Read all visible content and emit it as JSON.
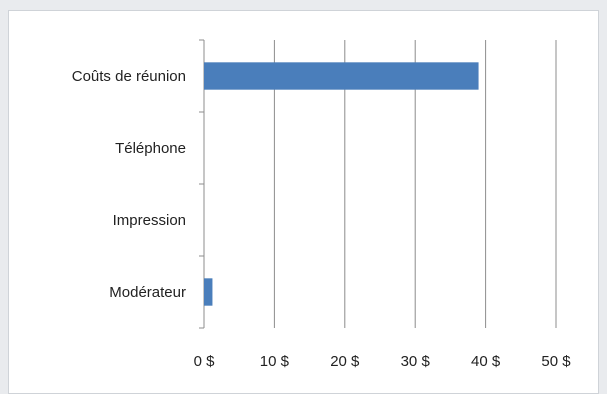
{
  "chart_data": {
    "type": "bar",
    "orientation": "horizontal",
    "categories": [
      "Coûts de réunion",
      "Téléphone",
      "Impression",
      "Modérateur"
    ],
    "values": [
      39,
      0,
      0,
      1.2
    ],
    "xlim": [
      0,
      50
    ],
    "x_ticks": [
      0,
      10,
      20,
      30,
      40,
      50
    ],
    "x_tick_labels": [
      "0 $",
      "10 $",
      "20 $",
      "30 $",
      "40 $",
      "50 $"
    ],
    "grid": "vertical",
    "legend": "none",
    "bar_color": "#4a7ebb",
    "grid_color": "#8c8c8c"
  }
}
